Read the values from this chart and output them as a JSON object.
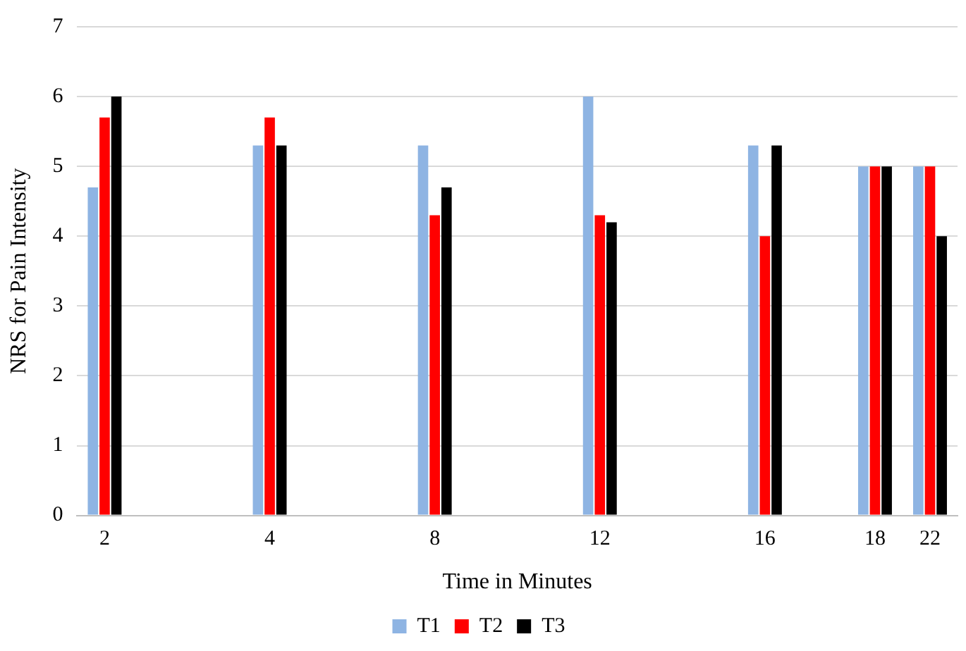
{
  "chart_data": {
    "type": "bar",
    "xlabel": "Time in Minutes",
    "ylabel": "NRS for Pain Intensity",
    "categories": [
      "2",
      null,
      null,
      "4",
      null,
      null,
      "8",
      null,
      null,
      "12",
      null,
      null,
      "16",
      null,
      "18",
      "22"
    ],
    "series": [
      {
        "name": "T1",
        "color": "#8eb4e3",
        "values": [
          4.7,
          null,
          null,
          5.3,
          null,
          null,
          5.3,
          null,
          null,
          6,
          null,
          null,
          5.3,
          null,
          5,
          5
        ]
      },
      {
        "name": "T2",
        "color": "#ff0000",
        "values": [
          5.7,
          null,
          null,
          5.7,
          null,
          null,
          4.3,
          null,
          null,
          4.3,
          null,
          null,
          4,
          null,
          5,
          5
        ]
      },
      {
        "name": "T3",
        "color": "#000000",
        "values": [
          6,
          null,
          null,
          5.3,
          null,
          null,
          4.7,
          null,
          null,
          4.2,
          null,
          null,
          5.3,
          null,
          5,
          4
        ]
      }
    ],
    "ylim": [
      0,
      7
    ],
    "yticks": [
      0,
      1,
      2,
      3,
      4,
      5,
      6,
      7
    ],
    "grid": "y",
    "legend": "bottom"
  }
}
